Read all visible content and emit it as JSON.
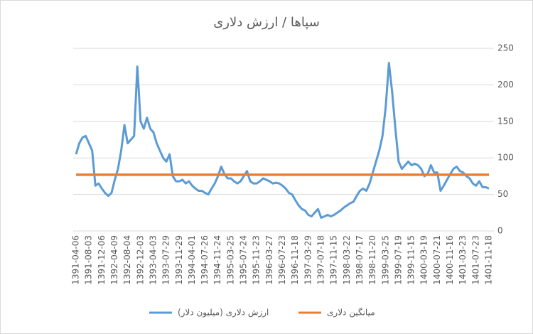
{
  "chart_data": {
    "type": "line",
    "title": "سپاها / ارزش دلاری",
    "categories": [
      "1391-04-06",
      null,
      null,
      null,
      "1391-08-03",
      null,
      null,
      null,
      "1391-12-06",
      null,
      null,
      null,
      "1392-04-09",
      null,
      null,
      null,
      "1392-08-04",
      null,
      null,
      null,
      "1392-12-03",
      null,
      null,
      null,
      "1393-04-03",
      null,
      null,
      null,
      "1393-07-29",
      null,
      null,
      null,
      "1393-11-29",
      null,
      null,
      null,
      "1394-04-01",
      null,
      null,
      null,
      "1394-07-26",
      null,
      null,
      null,
      "1394-11-24",
      null,
      null,
      null,
      "1395-03-25",
      null,
      null,
      null,
      "1395-07-24",
      null,
      null,
      null,
      "1395-11-23",
      null,
      null,
      null,
      "1396-03-27",
      null,
      null,
      null,
      "1396-07-23",
      null,
      null,
      null,
      "1396-11-18",
      null,
      null,
      null,
      "1397-03-29",
      null,
      null,
      null,
      "1397-07-18",
      null,
      null,
      null,
      "1397-11-15",
      null,
      null,
      null,
      "1398-03-22",
      null,
      null,
      null,
      "1398-07-17",
      null,
      null,
      null,
      "1398-11-20",
      null,
      null,
      null,
      "1399-03-25",
      null,
      null,
      null,
      "1399-07-19",
      null,
      null,
      null,
      "1399-11-15",
      null,
      null,
      null,
      "1400-03-19",
      null,
      null,
      null,
      "1400-07-21",
      null,
      null,
      null,
      "1400-11-16",
      null,
      null,
      null,
      "1401-03-23",
      null,
      null,
      null,
      "1401-07-23",
      null,
      null,
      null,
      "1401-11-18"
    ],
    "series": [
      {
        "name": "ارزش دلاری (میلیون دلار)",
        "color": "#5b9bd5",
        "values": [
          105,
          120,
          128,
          130,
          120,
          110,
          62,
          65,
          58,
          52,
          48,
          52,
          70,
          85,
          110,
          145,
          120,
          125,
          130,
          225,
          150,
          140,
          155,
          140,
          135,
          120,
          110,
          100,
          95,
          105,
          75,
          68,
          68,
          70,
          65,
          68,
          62,
          58,
          55,
          55,
          52,
          50,
          58,
          65,
          75,
          88,
          78,
          72,
          72,
          68,
          65,
          68,
          75,
          82,
          68,
          65,
          65,
          68,
          72,
          70,
          68,
          65,
          66,
          65,
          62,
          58,
          52,
          50,
          42,
          35,
          30,
          28,
          22,
          20,
          25,
          30,
          18,
          20,
          22,
          20,
          22,
          25,
          28,
          32,
          35,
          38,
          40,
          48,
          55,
          58,
          55,
          65,
          80,
          95,
          110,
          130,
          170,
          230,
          190,
          140,
          95,
          85,
          90,
          95,
          90,
          92,
          90,
          85,
          75,
          78,
          90,
          80,
          80,
          55,
          62,
          70,
          78,
          85,
          88,
          82,
          80,
          75,
          72,
          65,
          62,
          68,
          60,
          60,
          58
        ]
      },
      {
        "name": "میانگین دلاری",
        "color": "#ed7d31",
        "values": [
          77,
          77,
          77,
          77,
          77,
          77,
          77,
          77,
          77,
          77,
          77,
          77,
          77,
          77,
          77,
          77,
          77,
          77,
          77,
          77,
          77,
          77,
          77,
          77,
          77,
          77,
          77,
          77,
          77,
          77,
          77,
          77,
          77,
          77,
          77,
          77,
          77,
          77,
          77,
          77,
          77,
          77,
          77,
          77,
          77,
          77,
          77,
          77,
          77,
          77,
          77,
          77,
          77,
          77,
          77,
          77,
          77,
          77,
          77,
          77,
          77,
          77,
          77,
          77,
          77,
          77,
          77,
          77,
          77,
          77,
          77,
          77,
          77,
          77,
          77,
          77,
          77,
          77,
          77,
          77,
          77,
          77,
          77,
          77,
          77,
          77,
          77,
          77,
          77,
          77,
          77,
          77,
          77,
          77,
          77,
          77,
          77,
          77,
          77,
          77,
          77,
          77,
          77,
          77,
          77,
          77,
          77,
          77,
          77,
          77,
          77,
          77,
          77,
          77,
          77,
          77,
          77,
          77,
          77,
          77,
          77,
          77,
          77,
          77,
          77,
          77,
          77,
          77,
          77
        ]
      }
    ],
    "ylim": [
      0,
      250
    ],
    "yticks": [
      0,
      50,
      100,
      150,
      200,
      250
    ],
    "grid": true,
    "legend": "bottom"
  }
}
